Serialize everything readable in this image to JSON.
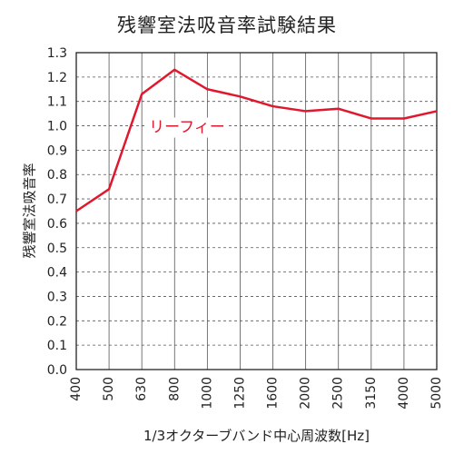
{
  "chart_data": {
    "type": "line",
    "title": "残響室法吸音率試験結果",
    "xlabel": "1/3オクターブバンド中心周波数[Hz]",
    "ylabel": "残響室法吸音率",
    "categories": [
      "400",
      "500",
      "630",
      "800",
      "1000",
      "1250",
      "1600",
      "2000",
      "2500",
      "3150",
      "4000",
      "5000"
    ],
    "series": [
      {
        "name": "リーフィー",
        "values": [
          0.65,
          0.74,
          1.13,
          1.23,
          1.15,
          1.12,
          1.08,
          1.06,
          1.07,
          1.03,
          1.03,
          1.06
        ],
        "color": "#e0182e"
      }
    ],
    "ylim": [
      0,
      1.3
    ],
    "yticks": [
      "0.0",
      "0.1",
      "0.2",
      "0.3",
      "0.4",
      "0.5",
      "0.6",
      "0.7",
      "0.8",
      "0.9",
      "1.0",
      "1.1",
      "1.2",
      "1.3"
    ],
    "grid": true
  }
}
